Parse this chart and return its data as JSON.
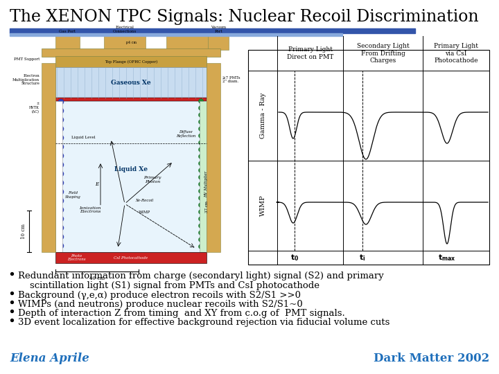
{
  "title": "The XENON TPC Signals: Nuclear Recoil Discrimination",
  "title_fontsize": 17,
  "title_font": "serif",
  "bg_color": "#ffffff",
  "bar_color_top": "#4472c4",
  "bar_color_bottom": "#87CEEB",
  "bullet_points": [
    "Redundant information from charge (secondaryl light) signal (S2) and primary",
    "    scintillation light (S1) signal from PMTs and CsI photocathode",
    "Background (γ,e,α) produce electron recoils with S2/S1 >>0",
    "WIMPs (and neutrons) produce nuclear recoils with S2/S1~0",
    "Depth of interaction Z from timing  and XY from c.o.g of  PMT signals.",
    "3D event localization for effective background rejection via fiducial volume cuts"
  ],
  "bullet_has_dot": [
    true,
    false,
    true,
    true,
    true,
    true
  ],
  "bullet_fontsize": 9.5,
  "footer_left": "Elena Aprile",
  "footer_right": "Dark Matter 2002",
  "footer_color": "#1F6FBB",
  "footer_fontsize": 12
}
